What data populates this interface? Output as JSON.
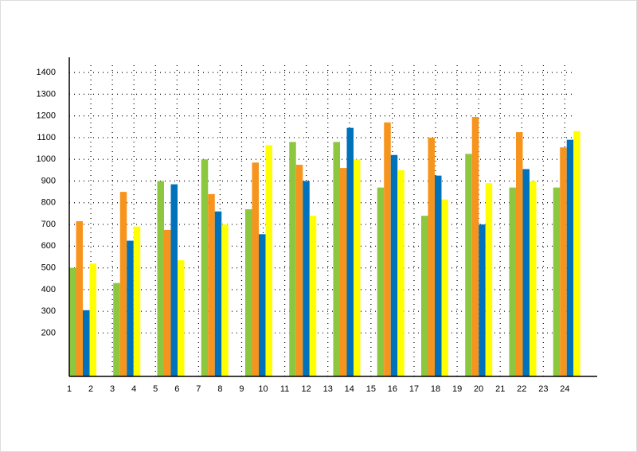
{
  "chart_data": {
    "type": "bar",
    "categories": [
      null,
      null,
      null,
      null,
      null,
      null,
      null,
      null,
      null,
      null,
      null,
      null
    ],
    "series": [
      {
        "color": "#8dc63f",
        "values": [
          500,
          430,
          900,
          1000,
          770,
          1080,
          1080,
          870,
          740,
          1025,
          870,
          870
        ]
      },
      {
        "color": "#f7941d",
        "values": [
          715,
          850,
          675,
          840,
          985,
          975,
          960,
          1170,
          1100,
          1195,
          1125,
          1055
        ]
      },
      {
        "color": "#0072bc",
        "values": [
          305,
          625,
          885,
          760,
          655,
          900,
          1145,
          1020,
          925,
          700,
          955,
          1090
        ]
      },
      {
        "color": "#ffff00",
        "values": [
          520,
          690,
          535,
          700,
          1065,
          740,
          1000,
          950,
          815,
          890,
          900,
          1130
        ]
      }
    ],
    "ylim": [
      0,
      1470
    ],
    "yticks": [
      200,
      300,
      400,
      500,
      600,
      700,
      800,
      900,
      1000,
      1100,
      1200,
      1300,
      1400
    ],
    "xlim": [
      1,
      25.5
    ],
    "xticks": [
      1,
      2,
      3,
      4,
      5,
      6,
      7,
      8,
      9,
      10,
      11,
      12,
      13,
      14,
      15,
      16,
      17,
      18,
      19,
      20,
      21,
      22,
      23,
      24
    ],
    "grid": true
  }
}
